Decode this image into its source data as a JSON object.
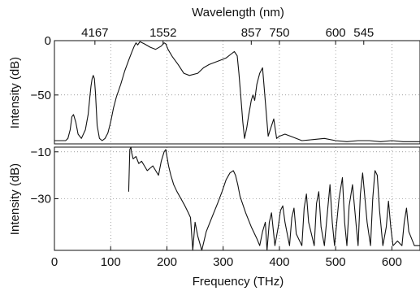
{
  "chart_data": [
    {
      "type": "line",
      "panel": "top",
      "xlabel_top": "Wavelength (nm)",
      "ylabel": "Intensity (dB)",
      "xlim": [
        0,
        650
      ],
      "ylim": [
        -95,
        0
      ],
      "grid": true,
      "y_ticks": [
        0,
        -50
      ],
      "y_tick_labels": [
        "0",
        "−50"
      ],
      "top_ticks_thz": [
        72,
        193.2,
        350,
        400,
        500,
        550
      ],
      "top_tick_labels": [
        "4167",
        "1552",
        "857",
        "750",
        "600",
        "545"
      ],
      "series": [
        {
          "x": [
            0,
            15,
            20,
            24,
            28,
            31,
            34,
            38,
            42,
            48,
            55,
            60,
            63,
            65,
            67,
            69,
            71,
            73,
            76,
            80,
            85,
            90,
            95,
            100,
            105,
            110,
            118,
            125,
            132,
            138,
            142,
            145,
            148,
            152,
            160,
            170,
            180,
            190,
            195,
            198,
            202,
            210,
            220,
            230,
            240,
            255,
            265,
            275,
            285,
            295,
            305,
            315,
            320,
            325,
            328,
            332,
            335,
            338,
            342,
            345,
            350,
            353,
            356,
            360,
            365,
            370,
            380,
            385,
            390,
            395,
            400,
            410,
            420,
            440,
            460,
            480,
            500,
            520,
            540,
            560,
            580,
            600,
            620,
            650
          ],
          "y": [
            -92,
            -92,
            -92,
            -90,
            -82,
            -70,
            -68,
            -75,
            -86,
            -90,
            -82,
            -68,
            -52,
            -42,
            -35,
            -32,
            -35,
            -48,
            -78,
            -90,
            -92,
            -90,
            -85,
            -75,
            -62,
            -52,
            -40,
            -28,
            -18,
            -10,
            -5,
            -2,
            -4,
            -1,
            -3,
            -6,
            -8,
            -5,
            -2,
            -3,
            -8,
            -15,
            -22,
            -30,
            -32,
            -30,
            -25,
            -22,
            -20,
            -18,
            -16,
            -12,
            -10,
            -14,
            -30,
            -55,
            -75,
            -90,
            -80,
            -70,
            -55,
            -50,
            -55,
            -40,
            -30,
            -25,
            -88,
            -80,
            -72,
            -90,
            -88,
            -86,
            -88,
            -92,
            -91,
            -90,
            -92,
            -93,
            -92,
            -92,
            -93,
            -92,
            -93,
            -93
          ]
        }
      ]
    },
    {
      "type": "line",
      "panel": "bottom",
      "xlabel": "Frequency (THz)",
      "ylabel": "Intensity (dB)",
      "xlim": [
        0,
        650
      ],
      "ylim": [
        -52,
        -8
      ],
      "grid": true,
      "x_ticks": [
        0,
        100,
        200,
        300,
        400,
        500,
        600
      ],
      "x_tick_labels": [
        "0",
        "100",
        "200",
        "300",
        "400",
        "500",
        "600"
      ],
      "y_ticks": [
        -10,
        -30
      ],
      "y_tick_labels": [
        "−10",
        "−30"
      ],
      "series": [
        {
          "x": [
            132,
            134,
            136,
            137,
            140,
            145,
            150,
            155,
            160,
            165,
            170,
            175,
            180,
            185,
            190,
            195,
            198,
            200,
            203,
            207,
            212,
            218,
            225,
            232,
            238,
            242,
            246,
            250,
            255,
            262,
            270,
            280,
            290,
            298,
            305,
            312,
            318,
            322,
            326,
            330,
            340,
            350,
            360,
            365,
            370,
            375,
            378,
            382,
            386,
            392,
            398,
            402,
            406,
            410,
            418,
            422,
            426,
            430,
            440,
            444,
            448,
            452,
            462,
            466,
            470,
            474,
            480,
            486,
            490,
            494,
            498,
            506,
            512,
            516,
            520,
            524,
            530,
            536,
            540,
            544,
            548,
            556,
            562,
            566,
            570,
            574,
            578,
            584,
            590,
            594,
            598,
            602,
            610,
            618,
            622,
            626,
            630,
            640,
            650
          ],
          "y": [
            -27,
            -9,
            -8,
            -10,
            -13,
            -12,
            -15,
            -14,
            -16,
            -18,
            -17,
            -16,
            -18,
            -20,
            -14,
            -10,
            -9,
            -12,
            -16,
            -20,
            -24,
            -27,
            -30,
            -33,
            -36,
            -38,
            -52,
            -40,
            -46,
            -52,
            -44,
            -38,
            -32,
            -27,
            -22,
            -19,
            -18,
            -20,
            -24,
            -29,
            -36,
            -42,
            -47,
            -50,
            -44,
            -40,
            -52,
            -40,
            -36,
            -50,
            -42,
            -35,
            -33,
            -40,
            -50,
            -38,
            -34,
            -45,
            -50,
            -34,
            -28,
            -40,
            -50,
            -32,
            -27,
            -42,
            -50,
            -34,
            -24,
            -40,
            -50,
            -30,
            -21,
            -40,
            -50,
            -33,
            -24,
            -40,
            -50,
            -28,
            -19,
            -40,
            -50,
            -30,
            -18,
            -20,
            -35,
            -50,
            -42,
            -31,
            -42,
            -50,
            -48,
            -50,
            -40,
            -34,
            -44,
            -50,
            -50
          ]
        }
      ]
    }
  ]
}
